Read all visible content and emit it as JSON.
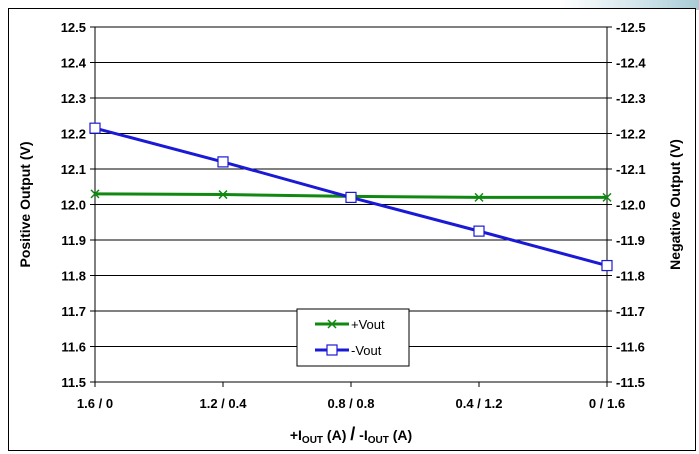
{
  "chart_data": {
    "type": "line",
    "categories": [
      "1.6 / 0",
      "1.2 / 0.4",
      "0.8 / 0.8",
      "0.4 / 1.2",
      "0 / 1.6"
    ],
    "series": [
      {
        "name": "+Vout",
        "axis": "left",
        "values": [
          12.03,
          12.028,
          12.023,
          12.02,
          12.02
        ],
        "color": "#118811",
        "marker": "x"
      },
      {
        "name": "-Vout",
        "axis": "right",
        "values": [
          -12.215,
          -12.12,
          -12.02,
          -11.925,
          -11.828
        ],
        "color": "#1a1ad6",
        "marker": "square"
      }
    ],
    "xlabel": {
      "prefix1": "+I",
      "sub1": "OUT",
      "suffix1": " (A) ",
      "slash": "/",
      "prefix2": " -I",
      "sub2": "OUT",
      "suffix2": " (A)"
    },
    "ylabel_left": "Positive Output (V)",
    "ylabel_right": "Negative Output (V)",
    "ylim_left": [
      11.5,
      12.5
    ],
    "ylim_right": [
      -11.5,
      -12.5
    ],
    "yticks_left": [
      "11.5",
      "11.6",
      "11.7",
      "11.8",
      "11.9",
      "12.0",
      "12.1",
      "12.2",
      "12.3",
      "12.4",
      "12.5"
    ],
    "yticks_right": [
      "-11.5",
      "-11.6",
      "-11.7",
      "-11.8",
      "-11.9",
      "-12.0",
      "-12.1",
      "-12.2",
      "-12.3",
      "-12.4",
      "-12.5"
    ],
    "grid": "horizontal",
    "legend": {
      "placement": "bottom-center",
      "entries": [
        "+Vout",
        "-Vout"
      ]
    }
  }
}
